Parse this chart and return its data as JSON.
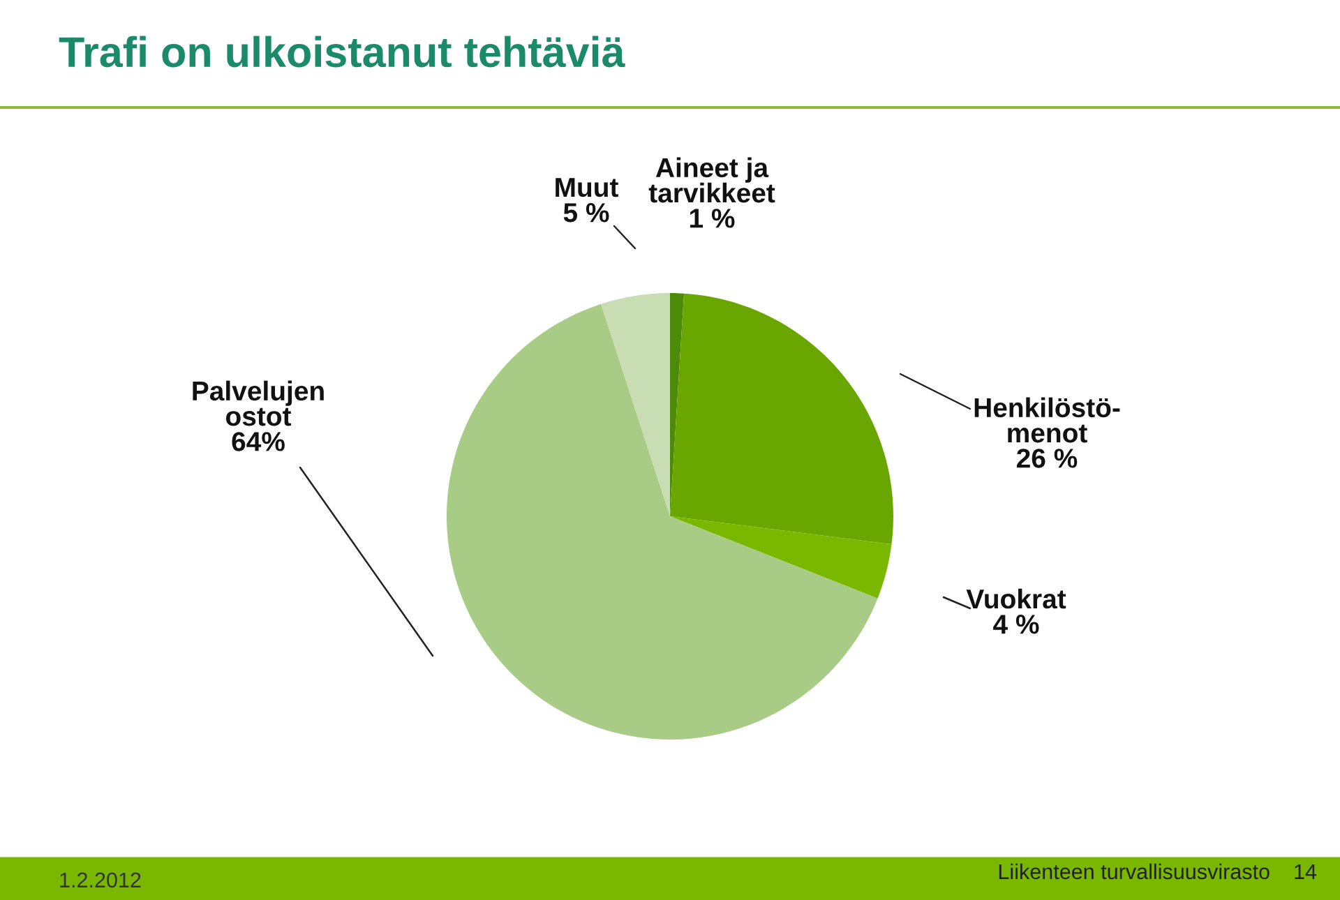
{
  "chart_data": {
    "type": "pie",
    "title": "Trafi on ulkoistanut tehtäviä",
    "categories": [
      "Aineet ja\ntarvikkeet",
      "Henkilöstö-\nmenot",
      "Vuokrat",
      "Palvelujen\nostot",
      "Muut"
    ],
    "values": [
      1,
      26,
      4,
      64,
      5
    ],
    "value_labels": [
      "1 %",
      "26 %",
      "4 %",
      "64%",
      "5 %"
    ],
    "colors": [
      "#4e8a0a",
      "#6aa600",
      "#7ab800",
      "#a8cb86",
      "#c8ddb3"
    ],
    "annotations": [
      "1.2.2012",
      "Liikenteen turvallisuusvirasto",
      "14"
    ]
  }
}
